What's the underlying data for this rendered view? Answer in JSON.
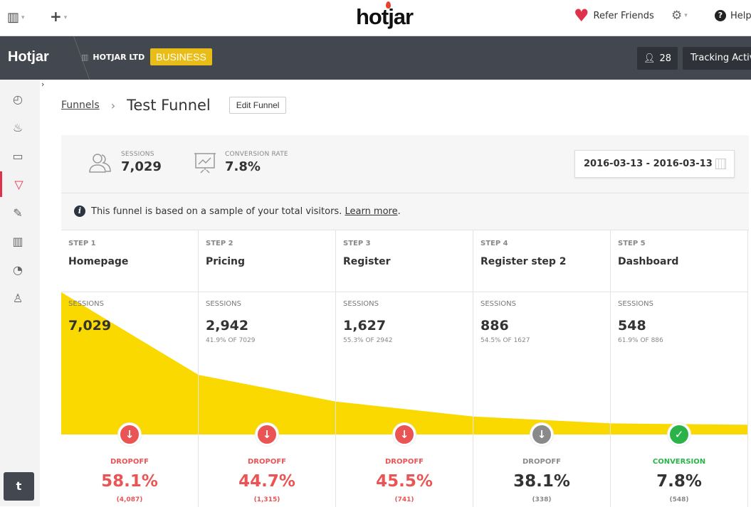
{
  "topbar": {
    "logo": "hotjar",
    "refer_label": "Refer Friends",
    "help_label": "Help"
  },
  "darkbar": {
    "brand": "Hotjar",
    "org": "HOTJAR LTD",
    "plan": "BUSINESS",
    "users_count": "28",
    "tracking": "Tracking Active"
  },
  "sidebar": {
    "items": [
      "dashboard",
      "heatmaps",
      "recordings",
      "funnels",
      "forms",
      "polls",
      "surveys",
      "recruiters"
    ],
    "active": "funnels",
    "twitter": "t"
  },
  "breadcrumb": {
    "parent": "Funnels",
    "title": "Test Funnel",
    "edit_label": "Edit Funnel"
  },
  "stats": {
    "sessions_label": "SESSIONS",
    "sessions_value": "7,029",
    "conversion_label": "CONVERSION RATE",
    "conversion_value": "7.8%",
    "date_range": "2016-03-13 - 2016-03-13"
  },
  "info": {
    "text": "This funnel is based on a sample of your total visitors.",
    "link": "Learn more",
    "suffix": "."
  },
  "colors": {
    "funnel": "#f9d900",
    "dropoff": "#ea5454",
    "neutral": "#8a8a8a",
    "conversion": "#2bb34a",
    "dark": "#43474f"
  },
  "steps": [
    {
      "step": "STEP 1",
      "name": "Homepage",
      "sessions_label": "SESSIONS",
      "sessions": 7029,
      "sessions_text": "7,029",
      "pct": "",
      "result_label": "DROPOFF",
      "result_value": "58.1%",
      "result_count": "(4,087)",
      "kind": "dropoff"
    },
    {
      "step": "STEP 2",
      "name": "Pricing",
      "sessions_label": "SESSIONS",
      "sessions": 2942,
      "sessions_text": "2,942",
      "pct": "41.9% OF 7029",
      "result_label": "DROPOFF",
      "result_value": "44.7%",
      "result_count": "(1,315)",
      "kind": "dropoff"
    },
    {
      "step": "STEP 3",
      "name": "Register",
      "sessions_label": "SESSIONS",
      "sessions": 1627,
      "sessions_text": "1,627",
      "pct": "55.3% OF 2942",
      "result_label": "DROPOFF",
      "result_value": "45.5%",
      "result_count": "(741)",
      "kind": "dropoff"
    },
    {
      "step": "STEP 4",
      "name": "Register step 2",
      "sessions_label": "SESSIONS",
      "sessions": 886,
      "sessions_text": "886",
      "pct": "54.5% OF 1627",
      "result_label": "DROPOFF",
      "result_value": "38.1%",
      "result_count": "(338)",
      "kind": "neutral"
    },
    {
      "step": "STEP 5",
      "name": "Dashboard",
      "sessions_label": "SESSIONS",
      "sessions": 548,
      "sessions_text": "548",
      "pct": "61.9% OF 886",
      "result_label": "CONVERSION",
      "result_value": "7.8%",
      "result_count": "(548)",
      "kind": "conversion"
    }
  ]
}
